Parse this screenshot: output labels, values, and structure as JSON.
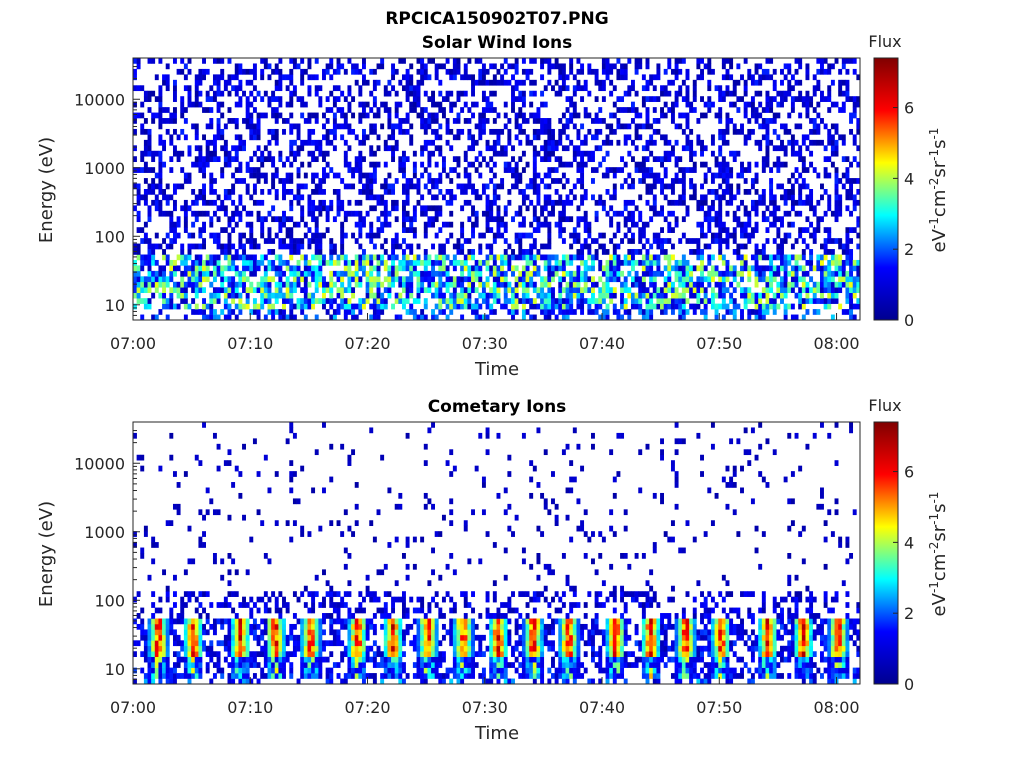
{
  "figure": {
    "title": "RPCICA150902T07.PNG"
  },
  "colormap": {
    "name": "jet",
    "stops": [
      "#00008f",
      "#0000ff",
      "#00ffff",
      "#ffff00",
      "#ff0000",
      "#800000"
    ]
  },
  "chart_data": [
    {
      "type": "heatmap",
      "title": "Solar Wind Ions",
      "xlabel": "Time",
      "ylabel": "Energy (eV)",
      "xlim": [
        "07:00",
        "08:02"
      ],
      "ylim": [
        6,
        40000
      ],
      "yscale": "log",
      "x_ticks": [
        "07:00",
        "07:10",
        "07:20",
        "07:30",
        "07:40",
        "07:50",
        "08:00"
      ],
      "y_ticks": [
        "10",
        "100",
        "1000",
        "10000"
      ],
      "colorbar": {
        "label": "Flux",
        "units": "eV⁻¹cm⁻²sr⁻¹s⁻¹",
        "range": [
          0,
          7.4
        ],
        "ticks": [
          "0",
          "2",
          "4",
          "6"
        ]
      },
      "flux_profile": {
        "high_energy_flux_max": 1.5,
        "low_energy_band_eV": [
          10,
          50
        ],
        "low_energy_flux_max": 3.8
      }
    },
    {
      "type": "heatmap",
      "title": "Cometary Ions",
      "xlabel": "Time",
      "ylabel": "Energy (eV)",
      "xlim": [
        "07:00",
        "08:02"
      ],
      "ylim": [
        6,
        40000
      ],
      "yscale": "log",
      "x_ticks": [
        "07:00",
        "07:10",
        "07:20",
        "07:30",
        "07:40",
        "07:50",
        "08:00"
      ],
      "y_ticks": [
        "10",
        "100",
        "1000",
        "10000"
      ],
      "colorbar": {
        "label": "Flux",
        "units": "eV⁻¹cm⁻²sr⁻¹s⁻¹",
        "range": [
          0,
          7.4
        ],
        "ticks": [
          "0",
          "2",
          "4",
          "6"
        ]
      },
      "flux_profile": {
        "peak_band_eV": [
          15,
          45
        ],
        "peak_flux_max": 7.2,
        "burst_times": [
          "07:02",
          "07:05",
          "07:09",
          "07:12",
          "07:15",
          "07:19",
          "07:22",
          "07:25",
          "07:28",
          "07:31",
          "07:34",
          "07:37",
          "07:41",
          "07:44",
          "07:47",
          "07:50",
          "07:54",
          "07:57",
          "08:00"
        ]
      }
    }
  ]
}
